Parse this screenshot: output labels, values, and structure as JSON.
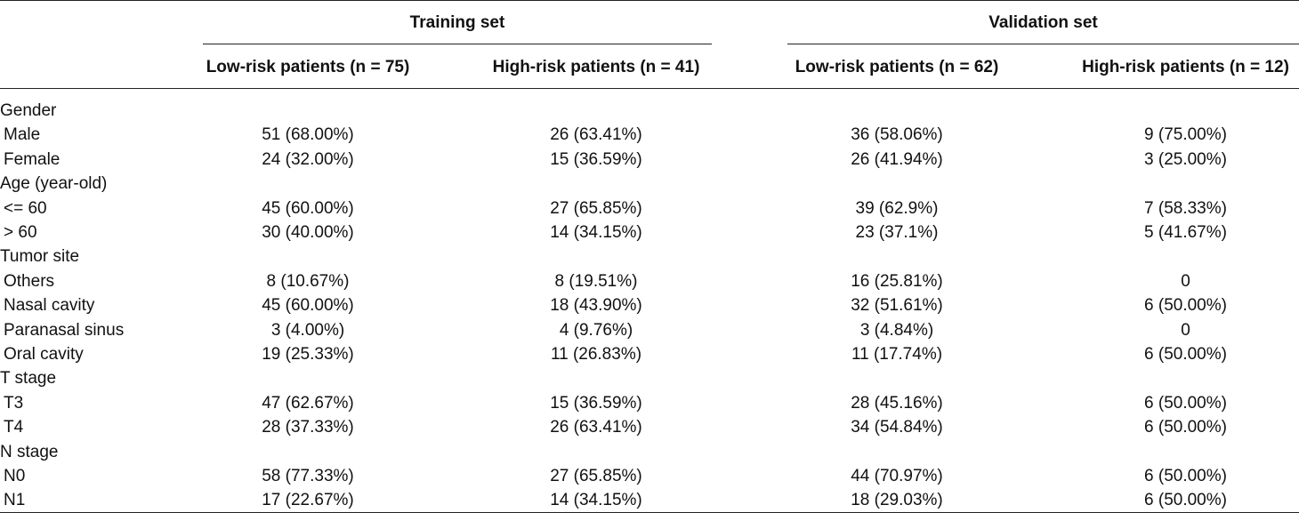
{
  "table": {
    "groups": [
      "Training set",
      "Validation set"
    ],
    "columns": [
      "Low-risk patients (n = 75)",
      "High-risk patients (n = 41)",
      "Low-risk patients (n = 62)",
      "High-risk patients (n = 12)"
    ],
    "rows": [
      {
        "label": "Gender",
        "sub": false,
        "values": [
          "",
          "",
          "",
          ""
        ]
      },
      {
        "label": "Male",
        "sub": true,
        "values": [
          "51 (68.00%)",
          "26 (63.41%)",
          "36 (58.06%)",
          "9 (75.00%)"
        ]
      },
      {
        "label": "Female",
        "sub": true,
        "values": [
          "24 (32.00%)",
          "15 (36.59%)",
          "26 (41.94%)",
          "3 (25.00%)"
        ]
      },
      {
        "label": "Age (year-old)",
        "sub": false,
        "values": [
          "",
          "",
          "",
          ""
        ]
      },
      {
        "label": "<= 60",
        "sub": true,
        "values": [
          "45 (60.00%)",
          "27 (65.85%)",
          "39 (62.9%)",
          "7 (58.33%)"
        ]
      },
      {
        "label": "> 60",
        "sub": true,
        "values": [
          "30 (40.00%)",
          "14 (34.15%)",
          "23 (37.1%)",
          "5 (41.67%)"
        ]
      },
      {
        "label": "Tumor site",
        "sub": false,
        "values": [
          "",
          "",
          "",
          ""
        ]
      },
      {
        "label": "Others",
        "sub": true,
        "values": [
          "8 (10.67%)",
          "8 (19.51%)",
          "16 (25.81%)",
          "0"
        ]
      },
      {
        "label": "Nasal cavity",
        "sub": true,
        "values": [
          "45 (60.00%)",
          "18 (43.90%)",
          "32 (51.61%)",
          "6 (50.00%)"
        ]
      },
      {
        "label": "Paranasal sinus",
        "sub": true,
        "values": [
          "3 (4.00%)",
          "4 (9.76%)",
          "3 (4.84%)",
          "0"
        ]
      },
      {
        "label": "Oral cavity",
        "sub": true,
        "values": [
          "19 (25.33%)",
          "11 (26.83%)",
          "11 (17.74%)",
          "6 (50.00%)"
        ]
      },
      {
        "label": "T stage",
        "sub": false,
        "values": [
          "",
          "",
          "",
          ""
        ]
      },
      {
        "label": "T3",
        "sub": true,
        "values": [
          "47 (62.67%)",
          "15 (36.59%)",
          "28 (45.16%)",
          "6 (50.00%)"
        ]
      },
      {
        "label": "T4",
        "sub": true,
        "values": [
          "28 (37.33%)",
          "26 (63.41%)",
          "34 (54.84%)",
          "6 (50.00%)"
        ]
      },
      {
        "label": "N stage",
        "sub": false,
        "values": [
          "",
          "",
          "",
          ""
        ]
      },
      {
        "label": "N0",
        "sub": true,
        "values": [
          "58 (77.33%)",
          "27 (65.85%)",
          "44 (70.97%)",
          "6 (50.00%)"
        ]
      },
      {
        "label": "N1",
        "sub": true,
        "values": [
          "17 (22.67%)",
          "14 (34.15%)",
          "18 (29.03%)",
          "6 (50.00%)"
        ]
      }
    ]
  }
}
